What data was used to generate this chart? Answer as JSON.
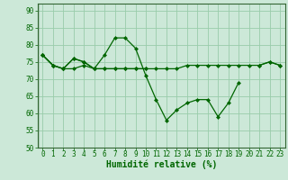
{
  "x": [
    0,
    1,
    2,
    3,
    4,
    5,
    6,
    7,
    8,
    9,
    10,
    11,
    12,
    13,
    14,
    15,
    16,
    17,
    18,
    19,
    20,
    21,
    22,
    23
  ],
  "line1": [
    77,
    74,
    73,
    76,
    75,
    73,
    77,
    82,
    82,
    79,
    71,
    64,
    58,
    61,
    63,
    64,
    64,
    59,
    63,
    69,
    null,
    74,
    75,
    74
  ],
  "line3": [
    77,
    74,
    73,
    73,
    74,
    73,
    73,
    73,
    73,
    73,
    73,
    73,
    73,
    73,
    74,
    74,
    74,
    74,
    74,
    74,
    74,
    74,
    75,
    74
  ],
  "line_extra1": [
    77,
    74,
    73,
    76,
    75,
    73,
    73,
    73,
    73,
    73,
    73
  ],
  "line_extra1_x": [
    0,
    1,
    2,
    3,
    4,
    5,
    6,
    7,
    8,
    9,
    10
  ],
  "bg_color": "#cce8d8",
  "grid_color": "#99ccaa",
  "line_color": "#006600",
  "xlabel": "Humidité relative (%)",
  "ylim": [
    50,
    92
  ],
  "xlim": [
    -0.5,
    23.5
  ],
  "yticks": [
    50,
    55,
    60,
    65,
    70,
    75,
    80,
    85,
    90
  ],
  "xticks": [
    0,
    1,
    2,
    3,
    4,
    5,
    6,
    7,
    8,
    9,
    10,
    11,
    12,
    13,
    14,
    15,
    16,
    17,
    18,
    19,
    20,
    21,
    22,
    23
  ],
  "tick_fontsize": 5.5,
  "xlabel_fontsize": 7
}
